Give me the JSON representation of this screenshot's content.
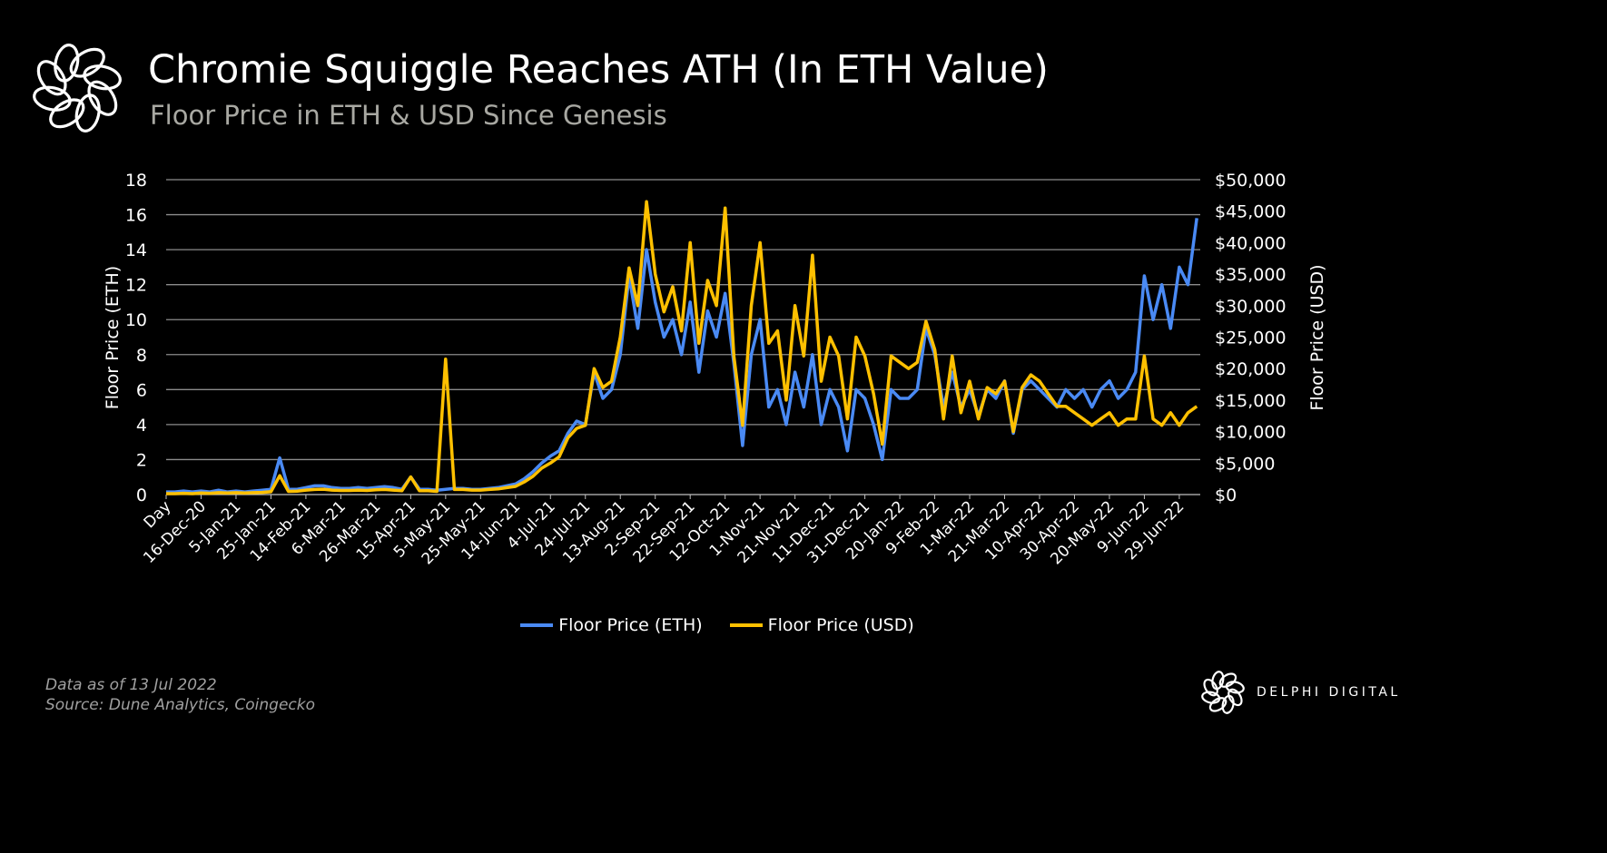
{
  "header": {
    "title": "Chromie Squiggle Reaches ATH (In ETH Value)",
    "subtitle": "Floor Price in ETH & USD Since Genesis"
  },
  "footer": {
    "data_note": "Data as of 13 Jul 2022",
    "source": "Source: Dune Analytics, Coingecko"
  },
  "brand": {
    "name": "DELPHI DIGITAL",
    "icon": "knot-logo-icon"
  },
  "colors": {
    "eth": "#4a8af4",
    "usd": "#ffc000",
    "grid": "#8c8c8c",
    "subtitle": "#a8a8a2"
  },
  "chart_data": {
    "type": "line",
    "title": "Chromie Squiggle Reaches ATH (In ETH Value)",
    "xlabel": "",
    "ylabel": "Floor Price (ETH)",
    "y2label": "Floor Price (USD)",
    "ylim": [
      0,
      18
    ],
    "y2lim": [
      0,
      50000
    ],
    "yticks": [
      "0",
      "2",
      "4",
      "6",
      "8",
      "10",
      "12",
      "14",
      "16",
      "18"
    ],
    "y2ticks": [
      "$0",
      "$5,000",
      "$10,000",
      "$15,000",
      "$20,000",
      "$25,000",
      "$30,000",
      "$35,000",
      "$40,000",
      "$45,000",
      "$50,000"
    ],
    "xticks_day_offset_step": 20,
    "xticks": [
      "Day",
      "16-Dec-20",
      "5-Jan-21",
      "25-Jan-21",
      "14-Feb-21",
      "6-Mar-21",
      "26-Mar-21",
      "15-Apr-21",
      "5-May-21",
      "25-May-21",
      "14-Jun-21",
      "4-Jul-21",
      "24-Jul-21",
      "13-Aug-21",
      "2-Sep-21",
      "22-Sep-21",
      "12-Oct-21",
      "1-Nov-21",
      "21-Nov-21",
      "11-Dec-21",
      "31-Dec-21",
      "20-Jan-22",
      "9-Feb-22",
      "1-Mar-22",
      "21-Mar-22",
      "10-Apr-22",
      "30-Apr-22",
      "20-May-22",
      "9-Jun-22",
      "29-Jun-22"
    ],
    "x_days": [
      0,
      5,
      10,
      15,
      20,
      25,
      30,
      35,
      40,
      45,
      50,
      55,
      60,
      65,
      70,
      75,
      80,
      85,
      90,
      95,
      100,
      105,
      110,
      115,
      120,
      125,
      130,
      135,
      140,
      145,
      150,
      155,
      160,
      165,
      170,
      175,
      180,
      185,
      190,
      195,
      200,
      205,
      210,
      215,
      220,
      225,
      230,
      235,
      240,
      245,
      250,
      255,
      260,
      265,
      270,
      275,
      280,
      285,
      290,
      295,
      300,
      305,
      310,
      315,
      320,
      325,
      330,
      335,
      340,
      345,
      350,
      355,
      360,
      365,
      370,
      375,
      380,
      385,
      390,
      395,
      400,
      405,
      410,
      415,
      420,
      425,
      430,
      435,
      440,
      445,
      450,
      455,
      460,
      465,
      470,
      475,
      480,
      485,
      490,
      495,
      500,
      505,
      510,
      515,
      520,
      525,
      530,
      535,
      540,
      545,
      550,
      555,
      560,
      565,
      570,
      575,
      580,
      585,
      590
    ],
    "grid": true,
    "legend_position": "bottom",
    "series": [
      {
        "name": "Floor Price (ETH)",
        "axis": "left",
        "values": [
          0.15,
          0.15,
          0.2,
          0.15,
          0.2,
          0.15,
          0.25,
          0.15,
          0.2,
          0.15,
          0.2,
          0.25,
          0.3,
          2.1,
          0.3,
          0.3,
          0.4,
          0.5,
          0.5,
          0.4,
          0.35,
          0.35,
          0.4,
          0.35,
          0.4,
          0.45,
          0.4,
          0.3,
          1.0,
          0.3,
          0.3,
          0.25,
          0.3,
          0.35,
          0.35,
          0.3,
          0.3,
          0.35,
          0.4,
          0.5,
          0.6,
          0.9,
          1.3,
          1.8,
          2.2,
          2.5,
          3.5,
          4.2,
          4.0,
          7.0,
          5.5,
          6.0,
          8.0,
          12.5,
          9.5,
          14.0,
          11.0,
          9.0,
          10.0,
          8.0,
          11.0,
          7.0,
          10.5,
          9.0,
          11.5,
          7.5,
          2.8,
          8.0,
          10.0,
          5.0,
          6.0,
          4.0,
          7.0,
          5.0,
          8.0,
          4.0,
          6.0,
          5.0,
          2.5,
          6.0,
          5.5,
          4.0,
          2.0,
          6.0,
          5.5,
          5.5,
          6.0,
          9.5,
          8.0,
          5.0,
          7.0,
          5.0,
          6.0,
          4.5,
          6.0,
          5.5,
          6.5,
          3.5,
          6.0,
          6.5,
          6.0,
          5.5,
          5.0,
          6.0,
          5.5,
          6.0,
          5.0,
          6.0,
          6.5,
          5.5,
          6.0,
          7.0,
          12.5,
          10.0,
          12.0,
          9.5,
          13.0,
          12.0,
          15.8
        ]
      },
      {
        "name": "Floor Price (USD)",
        "axis": "right",
        "values": [
          150,
          150,
          200,
          150,
          250,
          200,
          300,
          250,
          300,
          250,
          300,
          350,
          450,
          3000,
          500,
          550,
          700,
          800,
          850,
          700,
          650,
          650,
          700,
          650,
          750,
          800,
          700,
          600,
          2800,
          600,
          600,
          500,
          21500,
          800,
          800,
          700,
          700,
          800,
          900,
          1100,
          1300,
          2000,
          2900,
          4200,
          5000,
          6000,
          9000,
          10500,
          11000,
          20000,
          17000,
          18000,
          25000,
          36000,
          30000,
          46500,
          35000,
          29000,
          33000,
          26000,
          40000,
          24000,
          34000,
          30000,
          45500,
          22000,
          11000,
          30000,
          40000,
          24000,
          26000,
          15000,
          30000,
          22000,
          38000,
          18000,
          25000,
          22000,
          12000,
          25000,
          22000,
          16000,
          8000,
          22000,
          21000,
          20000,
          21000,
          27500,
          23000,
          12000,
          22000,
          13000,
          18000,
          12000,
          17000,
          16000,
          18000,
          10000,
          17000,
          19000,
          18000,
          16000,
          14000,
          14000,
          13000,
          12000,
          11000,
          12000,
          13000,
          11000,
          12000,
          12000,
          22000,
          12000,
          11000,
          13000,
          11000,
          13000,
          14000
        ]
      }
    ]
  }
}
